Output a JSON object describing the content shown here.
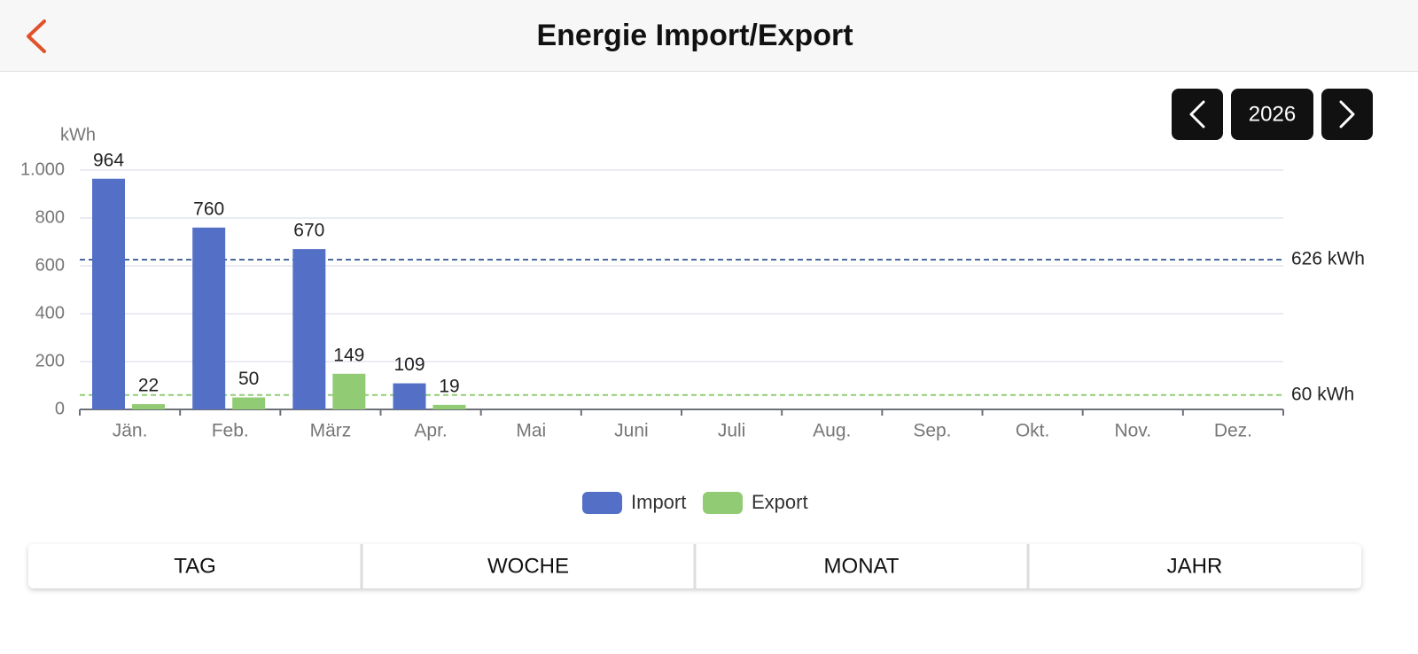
{
  "header": {
    "title": "Energie Import/Export"
  },
  "year_nav": {
    "year": "2026"
  },
  "chart_data": {
    "type": "bar",
    "y_unit": "kWh",
    "categories": [
      "Jän.",
      "Feb.",
      "März",
      "Apr.",
      "Mai",
      "Juni",
      "Juli",
      "Aug.",
      "Sep.",
      "Okt.",
      "Nov.",
      "Dez."
    ],
    "series": [
      {
        "name": "Import",
        "color": "#5470c6",
        "values": [
          964,
          760,
          670,
          109,
          null,
          null,
          null,
          null,
          null,
          null,
          null,
          null
        ]
      },
      {
        "name": "Export",
        "color": "#91cc75",
        "values": [
          22,
          50,
          149,
          19,
          null,
          null,
          null,
          null,
          null,
          null,
          null,
          null
        ]
      }
    ],
    "ylim": [
      0,
      1000
    ],
    "yticks": [
      0,
      200,
      400,
      600,
      800,
      {
        "value": 1000,
        "label": "1.000"
      }
    ],
    "grid": true,
    "reference_lines": [
      {
        "value": 626,
        "label": "626 kWh",
        "color": "#4a6a9c"
      },
      {
        "value": 60,
        "label": "60 kWh",
        "color": "#91cc75"
      }
    ],
    "legend": "bottom"
  },
  "tabs": [
    "TAG",
    "WOCHE",
    "MONAT",
    "JAHR"
  ]
}
